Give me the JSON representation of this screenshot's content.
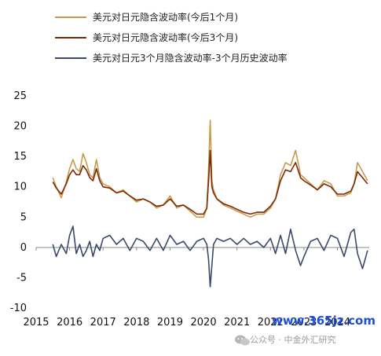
{
  "chart_data": {
    "type": "line",
    "title": "",
    "xlabel": "",
    "ylabel": "",
    "ylim": [
      -10,
      25
    ],
    "yticks": [
      -10,
      -5,
      0,
      5,
      10,
      15,
      20,
      25
    ],
    "xlim": [
      2015.0,
      2024.95
    ],
    "xticks": [
      2015,
      2016,
      2017,
      2018,
      2019,
      2020,
      2021,
      2022,
      2023,
      2024
    ],
    "xtick_labels": [
      "2015",
      "2016",
      "2017",
      "2018",
      "2019",
      "2020",
      "2021",
      "2022",
      "2023",
      "2024"
    ],
    "grid": false,
    "legend_position": "top",
    "series": [
      {
        "name": "美元对日元隐含波动率(今后1个月)",
        "color": "#C89B4C",
        "x": [
          2015.5,
          2015.6,
          2015.75,
          2015.9,
          2016.0,
          2016.1,
          2016.2,
          2016.3,
          2016.4,
          2016.5,
          2016.6,
          2016.7,
          2016.8,
          2016.9,
          2017.0,
          2017.2,
          2017.4,
          2017.6,
          2017.8,
          2018.0,
          2018.2,
          2018.4,
          2018.6,
          2018.8,
          2019.0,
          2019.2,
          2019.4,
          2019.6,
          2019.8,
          2020.0,
          2020.1,
          2020.15,
          2020.2,
          2020.25,
          2020.3,
          2020.4,
          2020.6,
          2020.8,
          2021.0,
          2021.2,
          2021.4,
          2021.6,
          2021.8,
          2022.0,
          2022.15,
          2022.3,
          2022.45,
          2022.6,
          2022.75,
          2022.9,
          2023.0,
          2023.2,
          2023.4,
          2023.6,
          2023.8,
          2024.0,
          2024.2,
          2024.4,
          2024.5,
          2024.6,
          2024.75,
          2024.9
        ],
        "values": [
          11.5,
          10.0,
          8.2,
          10.8,
          13.0,
          14.5,
          13.0,
          12.5,
          15.5,
          14.0,
          12.0,
          11.5,
          14.5,
          11.5,
          10.5,
          10.0,
          9.0,
          9.5,
          8.5,
          7.5,
          8.0,
          7.5,
          6.5,
          7.0,
          8.5,
          6.5,
          7.0,
          6.0,
          5.0,
          5.0,
          6.5,
          13.0,
          21.0,
          11.0,
          9.5,
          8.0,
          7.0,
          6.5,
          6.0,
          5.5,
          5.0,
          5.5,
          5.5,
          6.5,
          8.0,
          12.0,
          14.0,
          13.5,
          16.0,
          12.0,
          11.5,
          10.5,
          9.5,
          11.0,
          10.5,
          8.5,
          8.5,
          9.0,
          10.5,
          14.0,
          12.5,
          11.0
        ]
      },
      {
        "name": "美元对日元隐含波动率(今后3个月)",
        "color": "#7B2A05",
        "x": [
          2015.5,
          2015.6,
          2015.75,
          2015.9,
          2016.0,
          2016.1,
          2016.2,
          2016.3,
          2016.4,
          2016.5,
          2016.6,
          2016.7,
          2016.8,
          2016.9,
          2017.0,
          2017.2,
          2017.4,
          2017.6,
          2017.8,
          2018.0,
          2018.2,
          2018.4,
          2018.6,
          2018.8,
          2019.0,
          2019.2,
          2019.4,
          2019.6,
          2019.8,
          2020.0,
          2020.1,
          2020.15,
          2020.2,
          2020.25,
          2020.3,
          2020.4,
          2020.6,
          2020.8,
          2021.0,
          2021.2,
          2021.4,
          2021.6,
          2021.8,
          2022.0,
          2022.15,
          2022.3,
          2022.45,
          2022.6,
          2022.75,
          2022.9,
          2023.0,
          2023.2,
          2023.4,
          2023.6,
          2023.8,
          2024.0,
          2024.2,
          2024.4,
          2024.5,
          2024.6,
          2024.75,
          2024.9
        ],
        "values": [
          10.8,
          9.8,
          8.8,
          10.5,
          12.0,
          12.8,
          12.0,
          12.0,
          13.5,
          12.8,
          11.5,
          11.0,
          13.0,
          11.0,
          10.0,
          9.8,
          9.0,
          9.3,
          8.5,
          7.8,
          8.0,
          7.5,
          6.8,
          7.0,
          8.0,
          6.8,
          7.0,
          6.3,
          5.5,
          5.5,
          6.5,
          11.0,
          16.0,
          10.0,
          9.0,
          8.0,
          7.2,
          6.8,
          6.3,
          5.8,
          5.5,
          5.8,
          5.8,
          6.8,
          8.0,
          11.0,
          12.8,
          12.5,
          14.0,
          11.5,
          11.0,
          10.3,
          9.5,
          10.5,
          10.0,
          8.8,
          8.8,
          9.3,
          10.5,
          12.5,
          11.5,
          10.5
        ]
      },
      {
        "name": "美元对日元3个月隐含波动率-3个月历史波动率",
        "color": "#3B4A6B",
        "x": [
          2015.5,
          2015.6,
          2015.75,
          2015.9,
          2016.0,
          2016.1,
          2016.2,
          2016.3,
          2016.4,
          2016.5,
          2016.6,
          2016.7,
          2016.8,
          2016.9,
          2017.0,
          2017.2,
          2017.4,
          2017.6,
          2017.8,
          2018.0,
          2018.2,
          2018.4,
          2018.6,
          2018.8,
          2019.0,
          2019.2,
          2019.4,
          2019.6,
          2019.8,
          2020.0,
          2020.1,
          2020.15,
          2020.2,
          2020.25,
          2020.3,
          2020.4,
          2020.6,
          2020.8,
          2021.0,
          2021.2,
          2021.4,
          2021.6,
          2021.8,
          2022.0,
          2022.15,
          2022.3,
          2022.45,
          2022.6,
          2022.75,
          2022.9,
          2023.0,
          2023.2,
          2023.4,
          2023.6,
          2023.8,
          2024.0,
          2024.2,
          2024.4,
          2024.5,
          2024.6,
          2024.75,
          2024.9
        ],
        "values": [
          0.5,
          -1.5,
          0.5,
          -1.0,
          2.0,
          3.5,
          -1.0,
          0.5,
          -1.5,
          -0.5,
          1.0,
          -1.5,
          0.5,
          -0.5,
          1.5,
          2.0,
          0.5,
          1.5,
          -0.5,
          1.5,
          1.0,
          -0.5,
          1.5,
          -0.5,
          2.0,
          0.5,
          1.0,
          -0.5,
          1.0,
          1.5,
          0.5,
          -2.0,
          -6.5,
          -3.0,
          0.5,
          1.5,
          1.0,
          1.5,
          0.5,
          1.5,
          0.5,
          1.0,
          0.0,
          1.5,
          -1.0,
          2.0,
          -1.0,
          3.0,
          -0.5,
          -3.0,
          -1.5,
          1.0,
          1.5,
          -0.5,
          2.0,
          1.5,
          -1.5,
          2.5,
          3.0,
          -1.0,
          -3.5,
          -0.5
        ]
      }
    ]
  },
  "watermark": {
    "text": "公众号 · 中金外汇研究",
    "url": "www.365jz.com"
  }
}
